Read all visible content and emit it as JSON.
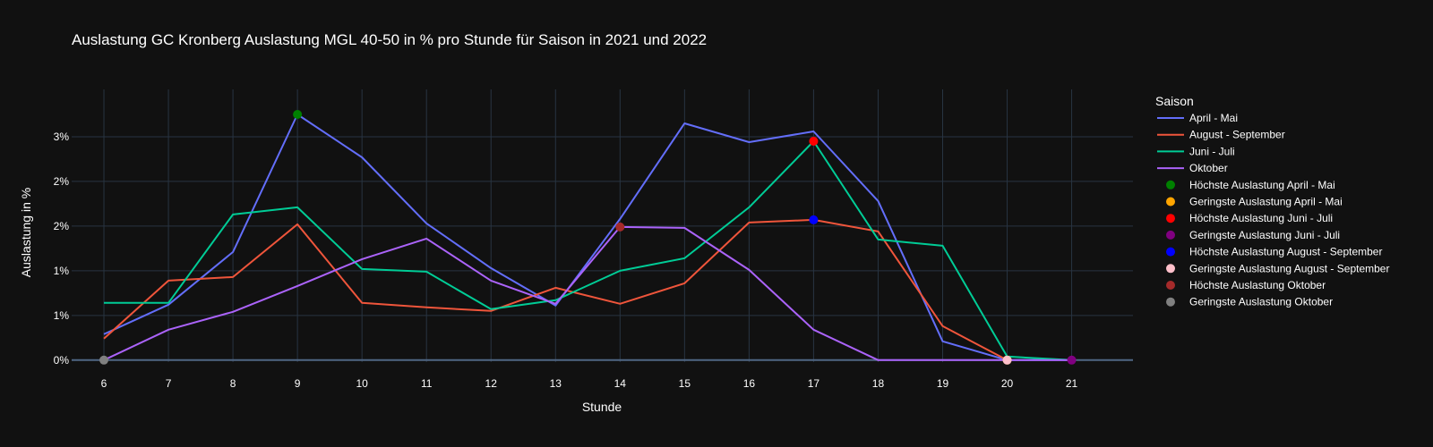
{
  "chart_data": {
    "type": "line",
    "title": "Auslastung GC Kronberg Auslastung MGL 40-50 in % pro Stunde für Saison in 2021 und 2022",
    "xlabel": "Stunde",
    "ylabel": "Auslastung in %",
    "x": [
      6,
      7,
      8,
      9,
      10,
      11,
      12,
      13,
      14,
      15,
      16,
      17,
      18,
      19,
      20,
      21
    ],
    "xlim": [
      5.5,
      21.95
    ],
    "ylim": [
      -0.00022,
      0.0303
    ],
    "y_ticks": [
      {
        "value": 0,
        "label": "0%"
      },
      {
        "value": 0.005,
        "label": "1%"
      },
      {
        "value": 0.01,
        "label": "1%"
      },
      {
        "value": 0.015,
        "label": "2%"
      },
      {
        "value": 0.02,
        "label": "2%"
      },
      {
        "value": 0.025,
        "label": "3%"
      }
    ],
    "grid": true,
    "legend_title": "Saison",
    "legend_placement": "right",
    "series": [
      {
        "name": "April - Mai",
        "color": "#636efa",
        "x": [
          6,
          7,
          8,
          9,
          10,
          11,
          12,
          13,
          14,
          15,
          16,
          17,
          18,
          19,
          20,
          21
        ],
        "values": [
          0.0029,
          0.0062,
          0.0121,
          0.0275,
          0.0227,
          0.0153,
          0.0103,
          0.0061,
          0.0158,
          0.0265,
          0.0244,
          0.0256,
          0.0178,
          0.0021,
          0.0,
          0.0
        ]
      },
      {
        "name": "August - September",
        "color": "#ef553b",
        "x": [
          6,
          7,
          8,
          9,
          10,
          11,
          12,
          13,
          14,
          15,
          16,
          17,
          18,
          19,
          20
        ],
        "values": [
          0.0024,
          0.0089,
          0.0093,
          0.0152,
          0.0064,
          0.0059,
          0.0055,
          0.0081,
          0.0063,
          0.0086,
          0.0154,
          0.0157,
          0.0144,
          0.0038,
          0.0
        ]
      },
      {
        "name": "Juni - Juli",
        "color": "#00cc96",
        "x": [
          6,
          7,
          8,
          9,
          10,
          11,
          12,
          13,
          14,
          15,
          16,
          17,
          18,
          19,
          20,
          21
        ],
        "values": [
          0.0064,
          0.0064,
          0.0163,
          0.0171,
          0.0102,
          0.0099,
          0.0057,
          0.0067,
          0.01,
          0.0114,
          0.0171,
          0.0245,
          0.0135,
          0.0128,
          0.0004,
          0.0
        ]
      },
      {
        "name": "Oktober",
        "color": "#ab63fa",
        "x": [
          6,
          7,
          8,
          9,
          10,
          11,
          12,
          13,
          14,
          15,
          16,
          17,
          18,
          19,
          20,
          21
        ],
        "values": [
          0.0,
          0.0034,
          0.0054,
          0.0083,
          0.0113,
          0.0136,
          0.0089,
          0.0063,
          0.0149,
          0.0148,
          0.0101,
          0.0034,
          0.0,
          0.0,
          0.0,
          0.0
        ]
      }
    ],
    "markers": [
      {
        "name": "Höchste Auslastung April - Mai",
        "color": "#008000",
        "x": 9,
        "y": 0.0275
      },
      {
        "name": "Geringste Auslastung April - Mai",
        "color": "#ffa500",
        "x": 20,
        "y": 0.0
      },
      {
        "name": "Höchste Auslastung Juni - Juli",
        "color": "#ff0000",
        "x": 17,
        "y": 0.0245
      },
      {
        "name": "Geringste Auslastung Juni - Juli",
        "color": "#800080",
        "x": 21,
        "y": 0.0
      },
      {
        "name": "Höchste Auslastung August - September",
        "color": "#0000ff",
        "x": 17,
        "y": 0.0157
      },
      {
        "name": "Geringste Auslastung August - September",
        "color": "#ffc0cb",
        "x": 20,
        "y": 0.0
      },
      {
        "name": "Höchste Auslastung Oktober",
        "color": "#a52a2a",
        "x": 14,
        "y": 0.0149
      },
      {
        "name": "Geringste Auslastung Oktober",
        "color": "#808080",
        "x": 6,
        "y": 0.0
      }
    ]
  }
}
